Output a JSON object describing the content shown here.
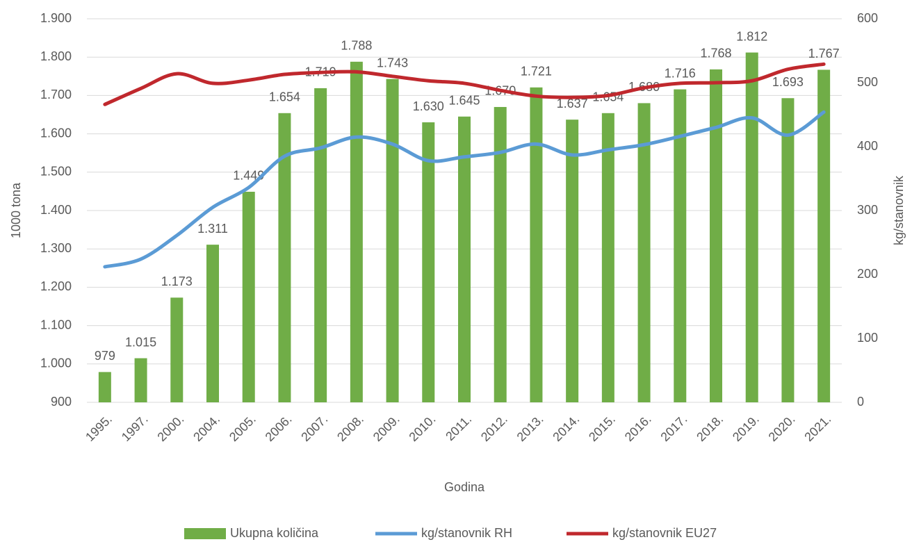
{
  "chart_data": {
    "type": "bar",
    "categories": [
      "1995.",
      "1997.",
      "2000.",
      "2004.",
      "2005.",
      "2006.",
      "2007.",
      "2008.",
      "2009.",
      "2010.",
      "2011.",
      "2012.",
      "2013.",
      "2014.",
      "2015.",
      "2016.",
      "2017.",
      "2018.",
      "2019.",
      "2020.",
      "2021."
    ],
    "series": [
      {
        "name": "Ukupna količina",
        "type": "bar",
        "color": "#70ad47",
        "values": [
          979,
          1015,
          1173,
          1311,
          1449,
          1654,
          1719,
          1788,
          1743,
          1630,
          1645,
          1670,
          1721,
          1637,
          1654,
          1680,
          1716,
          1768,
          1812,
          1693,
          1767
        ],
        "value_labels": [
          "979",
          "1.015",
          "1.173",
          "1.311",
          "1.449",
          "1.654",
          "1.719",
          "1.788",
          "1.743",
          "1.630",
          "1.645",
          "1.670",
          "1.721",
          "1.637",
          "1.654",
          "1.680",
          "1.716",
          "1.768",
          "1.812",
          "1.693",
          "1.767"
        ]
      },
      {
        "name": "kg/stanovnik RH",
        "type": "line",
        "axis": "y2",
        "color": "#5b9bd5",
        "values": [
          212,
          224,
          261,
          305,
          336,
          385,
          398,
          415,
          404,
          378,
          384,
          391,
          404,
          387,
          395,
          403,
          416,
          430,
          445,
          418,
          454
        ]
      },
      {
        "name": "kg/stanovnik EU27",
        "type": "line",
        "axis": "y2",
        "color": "#c0282d",
        "values": [
          466,
          491,
          514,
          499,
          504,
          513,
          516,
          517,
          510,
          503,
          499,
          488,
          479,
          477,
          480,
          492,
          499,
          500,
          503,
          521,
          529
        ]
      }
    ],
    "ylabel": "1000 tona",
    "y2label": "kg/stanovnik",
    "xlabel": "Godina",
    "ylim": [
      900,
      1900
    ],
    "yticks": [
      900,
      {
        "value": 1000,
        "label": "1.000"
      },
      {
        "value": 1100,
        "label": "1.100"
      },
      {
        "value": 1200,
        "label": "1.200"
      },
      {
        "value": 1300,
        "label": "1.300"
      },
      {
        "value": 1400,
        "label": "1.400"
      },
      {
        "value": 1500,
        "label": "1.500"
      },
      {
        "value": 1600,
        "label": "1.600"
      },
      {
        "value": 1700,
        "label": "1.700"
      },
      {
        "value": 1800,
        "label": "1.800"
      },
      {
        "value": 1900,
        "label": "1.900"
      }
    ],
    "y2lim": [
      0,
      600
    ],
    "y2ticks": [
      0,
      100,
      200,
      300,
      400,
      500,
      600
    ],
    "grid": true,
    "legend": "bottom"
  }
}
